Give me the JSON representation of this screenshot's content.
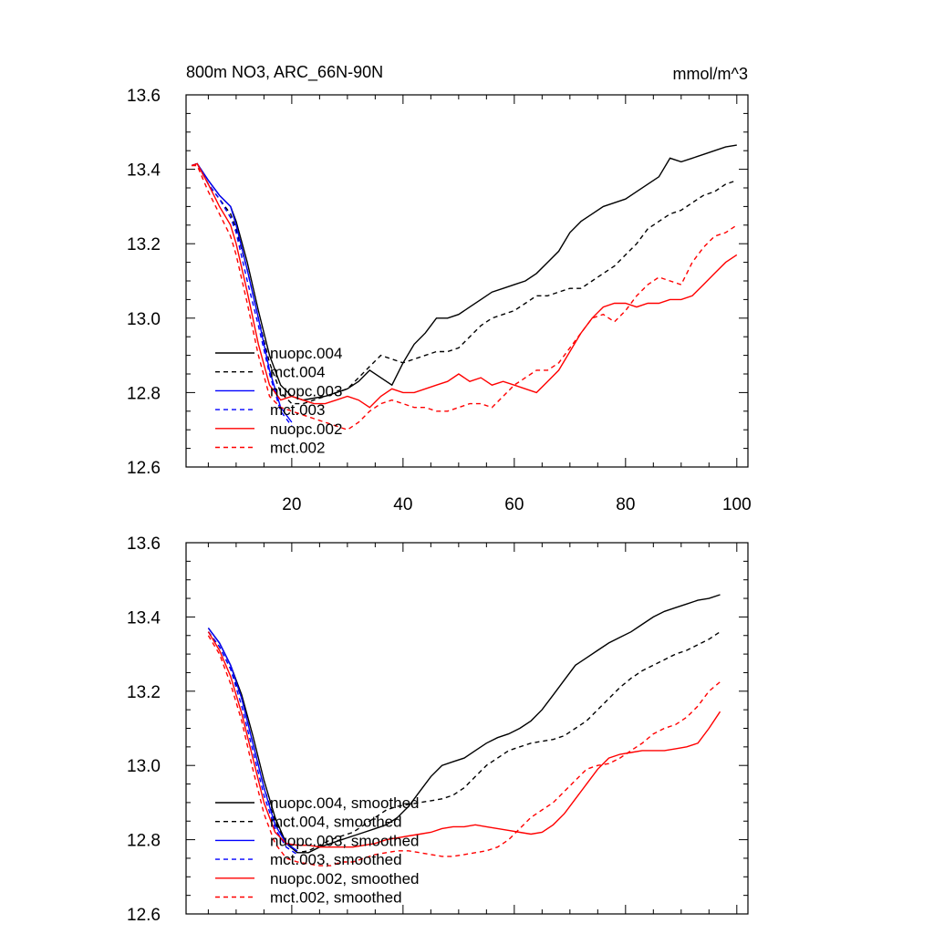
{
  "chart_data": [
    {
      "type": "line",
      "title": "800m NO3, ARC_66N-90N",
      "units": "mmol/m^3",
      "xlim": [
        1,
        102
      ],
      "ylim": [
        12.6,
        13.6
      ],
      "x_ticks": [
        20,
        40,
        60,
        80,
        100
      ],
      "x_tick_labels": [
        "20",
        "40",
        "60",
        "80",
        "100"
      ],
      "y_ticks": [
        12.6,
        12.8,
        13.0,
        13.2,
        13.4,
        13.6
      ],
      "y_tick_labels": [
        "12.6",
        "12.8",
        "13.0",
        "13.2",
        "13.4",
        "13.6"
      ],
      "series": [
        {
          "name": "nuopc.004",
          "color": "#000000",
          "dash": "solid",
          "x": [
            2,
            3,
            5,
            7,
            9,
            10,
            12,
            14,
            16,
            18,
            20,
            22,
            24,
            26,
            28,
            30,
            32,
            34,
            36,
            38,
            40,
            42,
            44,
            46,
            48,
            50,
            52,
            54,
            56,
            58,
            60,
            62,
            64,
            66,
            68,
            70,
            72,
            74,
            76,
            78,
            80,
            82,
            84,
            86,
            88,
            90,
            92,
            94,
            96,
            98,
            100
          ],
          "y": [
            13.41,
            13.415,
            13.37,
            13.33,
            13.3,
            13.26,
            13.15,
            13.02,
            12.9,
            12.82,
            12.79,
            12.78,
            12.785,
            12.79,
            12.8,
            12.81,
            12.83,
            12.86,
            12.84,
            12.82,
            12.88,
            12.93,
            12.96,
            13.0,
            13.0,
            13.01,
            13.03,
            13.05,
            13.07,
            13.08,
            13.09,
            13.1,
            13.12,
            13.15,
            13.18,
            13.23,
            13.26,
            13.28,
            13.3,
            13.31,
            13.32,
            13.34,
            13.36,
            13.38,
            13.43,
            13.42,
            13.43,
            13.44,
            13.45,
            13.46,
            13.465
          ]
        },
        {
          "name": "mct.004",
          "color": "#000000",
          "dash": "dashed",
          "x": [
            2,
            3,
            5,
            7,
            9,
            10,
            12,
            14,
            16,
            18,
            20,
            22,
            24,
            26,
            28,
            30,
            32,
            34,
            36,
            38,
            40,
            42,
            44,
            46,
            48,
            50,
            52,
            54,
            56,
            58,
            60,
            62,
            64,
            66,
            68,
            70,
            72,
            74,
            76,
            78,
            80,
            82,
            84,
            86,
            88,
            90,
            92,
            94,
            96,
            98,
            100
          ],
          "y": [
            13.41,
            13.415,
            13.36,
            13.32,
            13.28,
            13.24,
            13.13,
            13.0,
            12.88,
            12.8,
            12.77,
            12.77,
            12.78,
            12.79,
            12.8,
            12.81,
            12.84,
            12.87,
            12.9,
            12.89,
            12.88,
            12.89,
            12.9,
            12.91,
            12.91,
            12.92,
            12.95,
            12.98,
            13.0,
            13.01,
            13.02,
            13.04,
            13.06,
            13.06,
            13.07,
            13.08,
            13.08,
            13.1,
            13.12,
            13.14,
            13.17,
            13.2,
            13.24,
            13.26,
            13.28,
            13.29,
            13.31,
            13.33,
            13.34,
            13.36,
            13.37
          ]
        },
        {
          "name": "nuopc.003",
          "color": "#0000ff",
          "dash": "solid",
          "x": [
            2,
            3,
            5,
            7,
            9,
            10,
            12,
            14,
            16,
            18,
            20
          ],
          "y": [
            13.41,
            13.415,
            13.37,
            13.33,
            13.3,
            13.25,
            13.13,
            13.0,
            12.86,
            12.76,
            12.72
          ]
        },
        {
          "name": "mct.003",
          "color": "#0000ff",
          "dash": "dashed",
          "x": [
            2,
            3,
            5,
            7,
            9,
            10,
            12,
            14,
            16,
            18,
            20
          ],
          "y": [
            13.41,
            13.415,
            13.36,
            13.32,
            13.27,
            13.23,
            13.1,
            12.98,
            12.85,
            12.75,
            12.71
          ]
        },
        {
          "name": "nuopc.002",
          "color": "#ff0000",
          "dash": "solid",
          "x": [
            2,
            3,
            5,
            7,
            9,
            10,
            12,
            14,
            16,
            18,
            20,
            22,
            24,
            26,
            28,
            30,
            32,
            34,
            36,
            38,
            40,
            42,
            44,
            46,
            48,
            50,
            52,
            54,
            56,
            58,
            60,
            62,
            64,
            66,
            68,
            70,
            72,
            74,
            76,
            78,
            80,
            82,
            84,
            86,
            88,
            90,
            92,
            94,
            96,
            98,
            100
          ],
          "y": [
            13.41,
            13.415,
            13.36,
            13.3,
            13.25,
            13.2,
            13.07,
            12.93,
            12.82,
            12.78,
            12.79,
            12.78,
            12.77,
            12.77,
            12.78,
            12.79,
            12.78,
            12.76,
            12.79,
            12.81,
            12.8,
            12.8,
            12.81,
            12.82,
            12.83,
            12.85,
            12.83,
            12.84,
            12.82,
            12.83,
            12.82,
            12.81,
            12.8,
            12.83,
            12.86,
            12.91,
            12.96,
            13.0,
            13.03,
            13.04,
            13.04,
            13.03,
            13.04,
            13.04,
            13.05,
            13.05,
            13.06,
            13.09,
            13.12,
            13.15,
            13.17
          ]
        },
        {
          "name": "mct.002",
          "color": "#ff0000",
          "dash": "dashed",
          "x": [
            2,
            3,
            5,
            7,
            9,
            10,
            12,
            14,
            16,
            18,
            20,
            22,
            24,
            26,
            28,
            30,
            32,
            34,
            36,
            38,
            40,
            42,
            44,
            46,
            48,
            50,
            52,
            54,
            56,
            58,
            60,
            62,
            64,
            66,
            68,
            70,
            72,
            74,
            76,
            78,
            80,
            82,
            84,
            86,
            88,
            90,
            92,
            94,
            96,
            98,
            100
          ],
          "y": [
            13.41,
            13.41,
            13.34,
            13.28,
            13.22,
            13.17,
            13.04,
            12.9,
            12.79,
            12.76,
            12.75,
            12.74,
            12.73,
            12.72,
            12.71,
            12.7,
            12.72,
            12.75,
            12.77,
            12.78,
            12.77,
            12.76,
            12.76,
            12.75,
            12.75,
            12.76,
            12.77,
            12.77,
            12.76,
            12.79,
            12.82,
            12.84,
            12.86,
            12.86,
            12.88,
            12.92,
            12.96,
            13.0,
            13.01,
            12.99,
            13.02,
            13.06,
            13.09,
            13.11,
            13.1,
            13.09,
            13.15,
            13.19,
            13.22,
            13.23,
            13.25
          ]
        }
      ]
    },
    {
      "type": "line",
      "xlim": [
        1,
        102
      ],
      "ylim": [
        12.6,
        13.6
      ],
      "x_ticks": [
        20,
        40,
        60,
        80,
        100
      ],
      "y_ticks": [
        12.6,
        12.8,
        13.0,
        13.2,
        13.4,
        13.6
      ],
      "y_tick_labels": [
        "12.6",
        "12.8",
        "13.0",
        "13.2",
        "13.4",
        "13.6"
      ],
      "series": [
        {
          "name": "nuopc.004, smoothed",
          "color": "#000000",
          "dash": "solid",
          "x": [
            5,
            7,
            9,
            11,
            13,
            15,
            17,
            19,
            21,
            23,
            25,
            27,
            29,
            31,
            33,
            35,
            37,
            39,
            41,
            43,
            45,
            47,
            49,
            51,
            53,
            55,
            57,
            59,
            61,
            63,
            65,
            67,
            69,
            71,
            73,
            75,
            77,
            79,
            81,
            83,
            85,
            87,
            89,
            91,
            93,
            95,
            97
          ],
          "y": [
            13.37,
            13.33,
            13.27,
            13.19,
            13.08,
            12.96,
            12.86,
            12.79,
            12.765,
            12.765,
            12.78,
            12.79,
            12.8,
            12.81,
            12.82,
            12.83,
            12.84,
            12.86,
            12.89,
            12.93,
            12.97,
            13.0,
            13.01,
            13.02,
            13.04,
            13.06,
            13.075,
            13.085,
            13.1,
            13.12,
            13.15,
            13.19,
            13.23,
            13.27,
            13.29,
            13.31,
            13.33,
            13.345,
            13.36,
            13.38,
            13.4,
            13.415,
            13.425,
            13.435,
            13.445,
            13.45,
            13.46
          ]
        },
        {
          "name": "mct.004, smoothed",
          "color": "#000000",
          "dash": "dashed",
          "x": [
            5,
            7,
            9,
            11,
            13,
            15,
            17,
            19,
            21,
            23,
            25,
            27,
            29,
            31,
            33,
            35,
            37,
            39,
            41,
            43,
            45,
            47,
            49,
            51,
            53,
            55,
            57,
            59,
            61,
            63,
            65,
            67,
            69,
            71,
            73,
            75,
            77,
            79,
            81,
            83,
            85,
            87,
            89,
            91,
            93,
            95,
            97
          ],
          "y": [
            13.36,
            13.32,
            13.26,
            13.18,
            13.06,
            12.94,
            12.85,
            12.79,
            12.765,
            12.77,
            12.785,
            12.8,
            12.81,
            12.82,
            12.84,
            12.86,
            12.88,
            12.89,
            12.895,
            12.9,
            12.905,
            12.91,
            12.92,
            12.94,
            12.97,
            13.0,
            13.02,
            13.04,
            13.05,
            13.06,
            13.065,
            13.07,
            13.08,
            13.1,
            13.12,
            13.15,
            13.18,
            13.21,
            13.235,
            13.255,
            13.27,
            13.285,
            13.3,
            13.31,
            13.325,
            13.34,
            13.36
          ]
        },
        {
          "name": "nuopc.003, smoothed",
          "color": "#0000ff",
          "dash": "solid",
          "x": [
            5,
            7,
            9,
            11,
            13,
            15,
            17,
            19,
            21
          ],
          "y": [
            13.37,
            13.33,
            13.27,
            13.18,
            13.06,
            12.94,
            12.84,
            12.79,
            12.77
          ]
        },
        {
          "name": "mct.003, smoothed",
          "color": "#0000ff",
          "dash": "dashed",
          "x": [
            5,
            7,
            9,
            11,
            13,
            15,
            17,
            19,
            21
          ],
          "y": [
            13.36,
            13.32,
            13.26,
            13.16,
            13.04,
            12.92,
            12.83,
            12.78,
            12.76
          ]
        },
        {
          "name": "nuopc.002, smoothed",
          "color": "#ff0000",
          "dash": "solid",
          "x": [
            5,
            7,
            9,
            11,
            13,
            15,
            17,
            19,
            21,
            23,
            25,
            27,
            29,
            31,
            33,
            35,
            37,
            39,
            41,
            43,
            45,
            47,
            49,
            51,
            53,
            55,
            57,
            59,
            61,
            63,
            65,
            67,
            69,
            71,
            73,
            75,
            77,
            79,
            81,
            83,
            85,
            87,
            89,
            91,
            93,
            95,
            97
          ],
          "y": [
            13.36,
            13.31,
            13.24,
            13.14,
            13.02,
            12.9,
            12.82,
            12.79,
            12.785,
            12.785,
            12.78,
            12.78,
            12.78,
            12.78,
            12.785,
            12.79,
            12.8,
            12.805,
            12.81,
            12.815,
            12.82,
            12.83,
            12.835,
            12.835,
            12.84,
            12.835,
            12.83,
            12.825,
            12.82,
            12.815,
            12.82,
            12.84,
            12.87,
            12.91,
            12.95,
            12.99,
            13.02,
            13.03,
            13.035,
            13.04,
            13.04,
            13.04,
            13.045,
            13.05,
            13.06,
            13.1,
            13.145
          ]
        },
        {
          "name": "mct.002, smoothed",
          "color": "#ff0000",
          "dash": "dashed",
          "x": [
            5,
            7,
            9,
            11,
            13,
            15,
            17,
            19,
            21,
            23,
            25,
            27,
            29,
            31,
            33,
            35,
            37,
            39,
            41,
            43,
            45,
            47,
            49,
            51,
            53,
            55,
            57,
            59,
            61,
            63,
            65,
            67,
            69,
            71,
            73,
            75,
            77,
            79,
            81,
            83,
            85,
            87,
            89,
            91,
            93,
            95,
            97
          ],
          "y": [
            13.35,
            13.3,
            13.22,
            13.12,
            12.99,
            12.87,
            12.79,
            12.75,
            12.74,
            12.735,
            12.73,
            12.73,
            12.74,
            12.74,
            12.75,
            12.76,
            12.765,
            12.77,
            12.77,
            12.765,
            12.76,
            12.755,
            12.755,
            12.76,
            12.765,
            12.77,
            12.78,
            12.8,
            12.83,
            12.86,
            12.88,
            12.9,
            12.93,
            12.96,
            12.99,
            13.0,
            13.005,
            13.02,
            13.04,
            13.06,
            13.085,
            13.1,
            13.11,
            13.13,
            13.16,
            13.2,
            13.225
          ]
        }
      ]
    }
  ]
}
